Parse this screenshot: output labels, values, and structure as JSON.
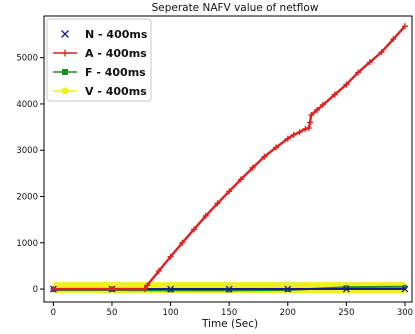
{
  "chart_data": {
    "type": "scatter",
    "title": "Seperate NAFV value of netflow",
    "xlabel": "Time (Sec)",
    "ylabel": "",
    "xlim": [
      -8,
      306
    ],
    "ylim": [
      -280,
      5900
    ],
    "xticks": [
      0,
      50,
      100,
      150,
      200,
      250,
      300
    ],
    "yticks": [
      0,
      1000,
      2000,
      3000,
      4000,
      5000
    ],
    "xtick_labels": [
      "0",
      "50",
      "100",
      "150",
      "200",
      "250",
      "300"
    ],
    "ytick_labels": [
      "0",
      "1000",
      "2000",
      "3000",
      "4000",
      "5000"
    ],
    "grid": false,
    "legend_position": "upper-left",
    "series": [
      {
        "name": "N - 400ms",
        "marker": "x",
        "color": "#1a1a8c",
        "x": [
          0,
          50,
          100,
          150,
          200,
          250,
          300
        ],
        "y": [
          0,
          0,
          0,
          0,
          0,
          0,
          0
        ]
      },
      {
        "name": "A - 400ms",
        "marker": "+",
        "color": "#e02020",
        "x": [
          0,
          50,
          78,
          80,
          90,
          100,
          110,
          120,
          130,
          140,
          150,
          160,
          170,
          180,
          190,
          200,
          205,
          210,
          215,
          218,
          219,
          220,
          225,
          230,
          240,
          250,
          260,
          270,
          280,
          290,
          300
        ],
        "y": [
          0,
          0,
          0,
          80,
          390,
          700,
          1000,
          1290,
          1580,
          1850,
          2110,
          2370,
          2620,
          2860,
          3060,
          3250,
          3330,
          3390,
          3460,
          3480,
          3600,
          3760,
          3870,
          3980,
          4200,
          4420,
          4680,
          4900,
          5120,
          5400,
          5680
        ]
      },
      {
        "name": "F - 400ms",
        "marker": "s",
        "color": "#1f8f1f",
        "x": [
          0,
          50,
          100,
          150,
          200,
          250,
          300
        ],
        "y": [
          -20,
          -20,
          -30,
          -30,
          -20,
          40,
          50
        ]
      },
      {
        "name": "V - 400ms",
        "marker": "o",
        "color": "#f0f020",
        "x": [
          0,
          50,
          100,
          150,
          200,
          250,
          300
        ],
        "y": [
          30,
          30,
          30,
          30,
          30,
          30,
          30
        ]
      }
    ]
  }
}
